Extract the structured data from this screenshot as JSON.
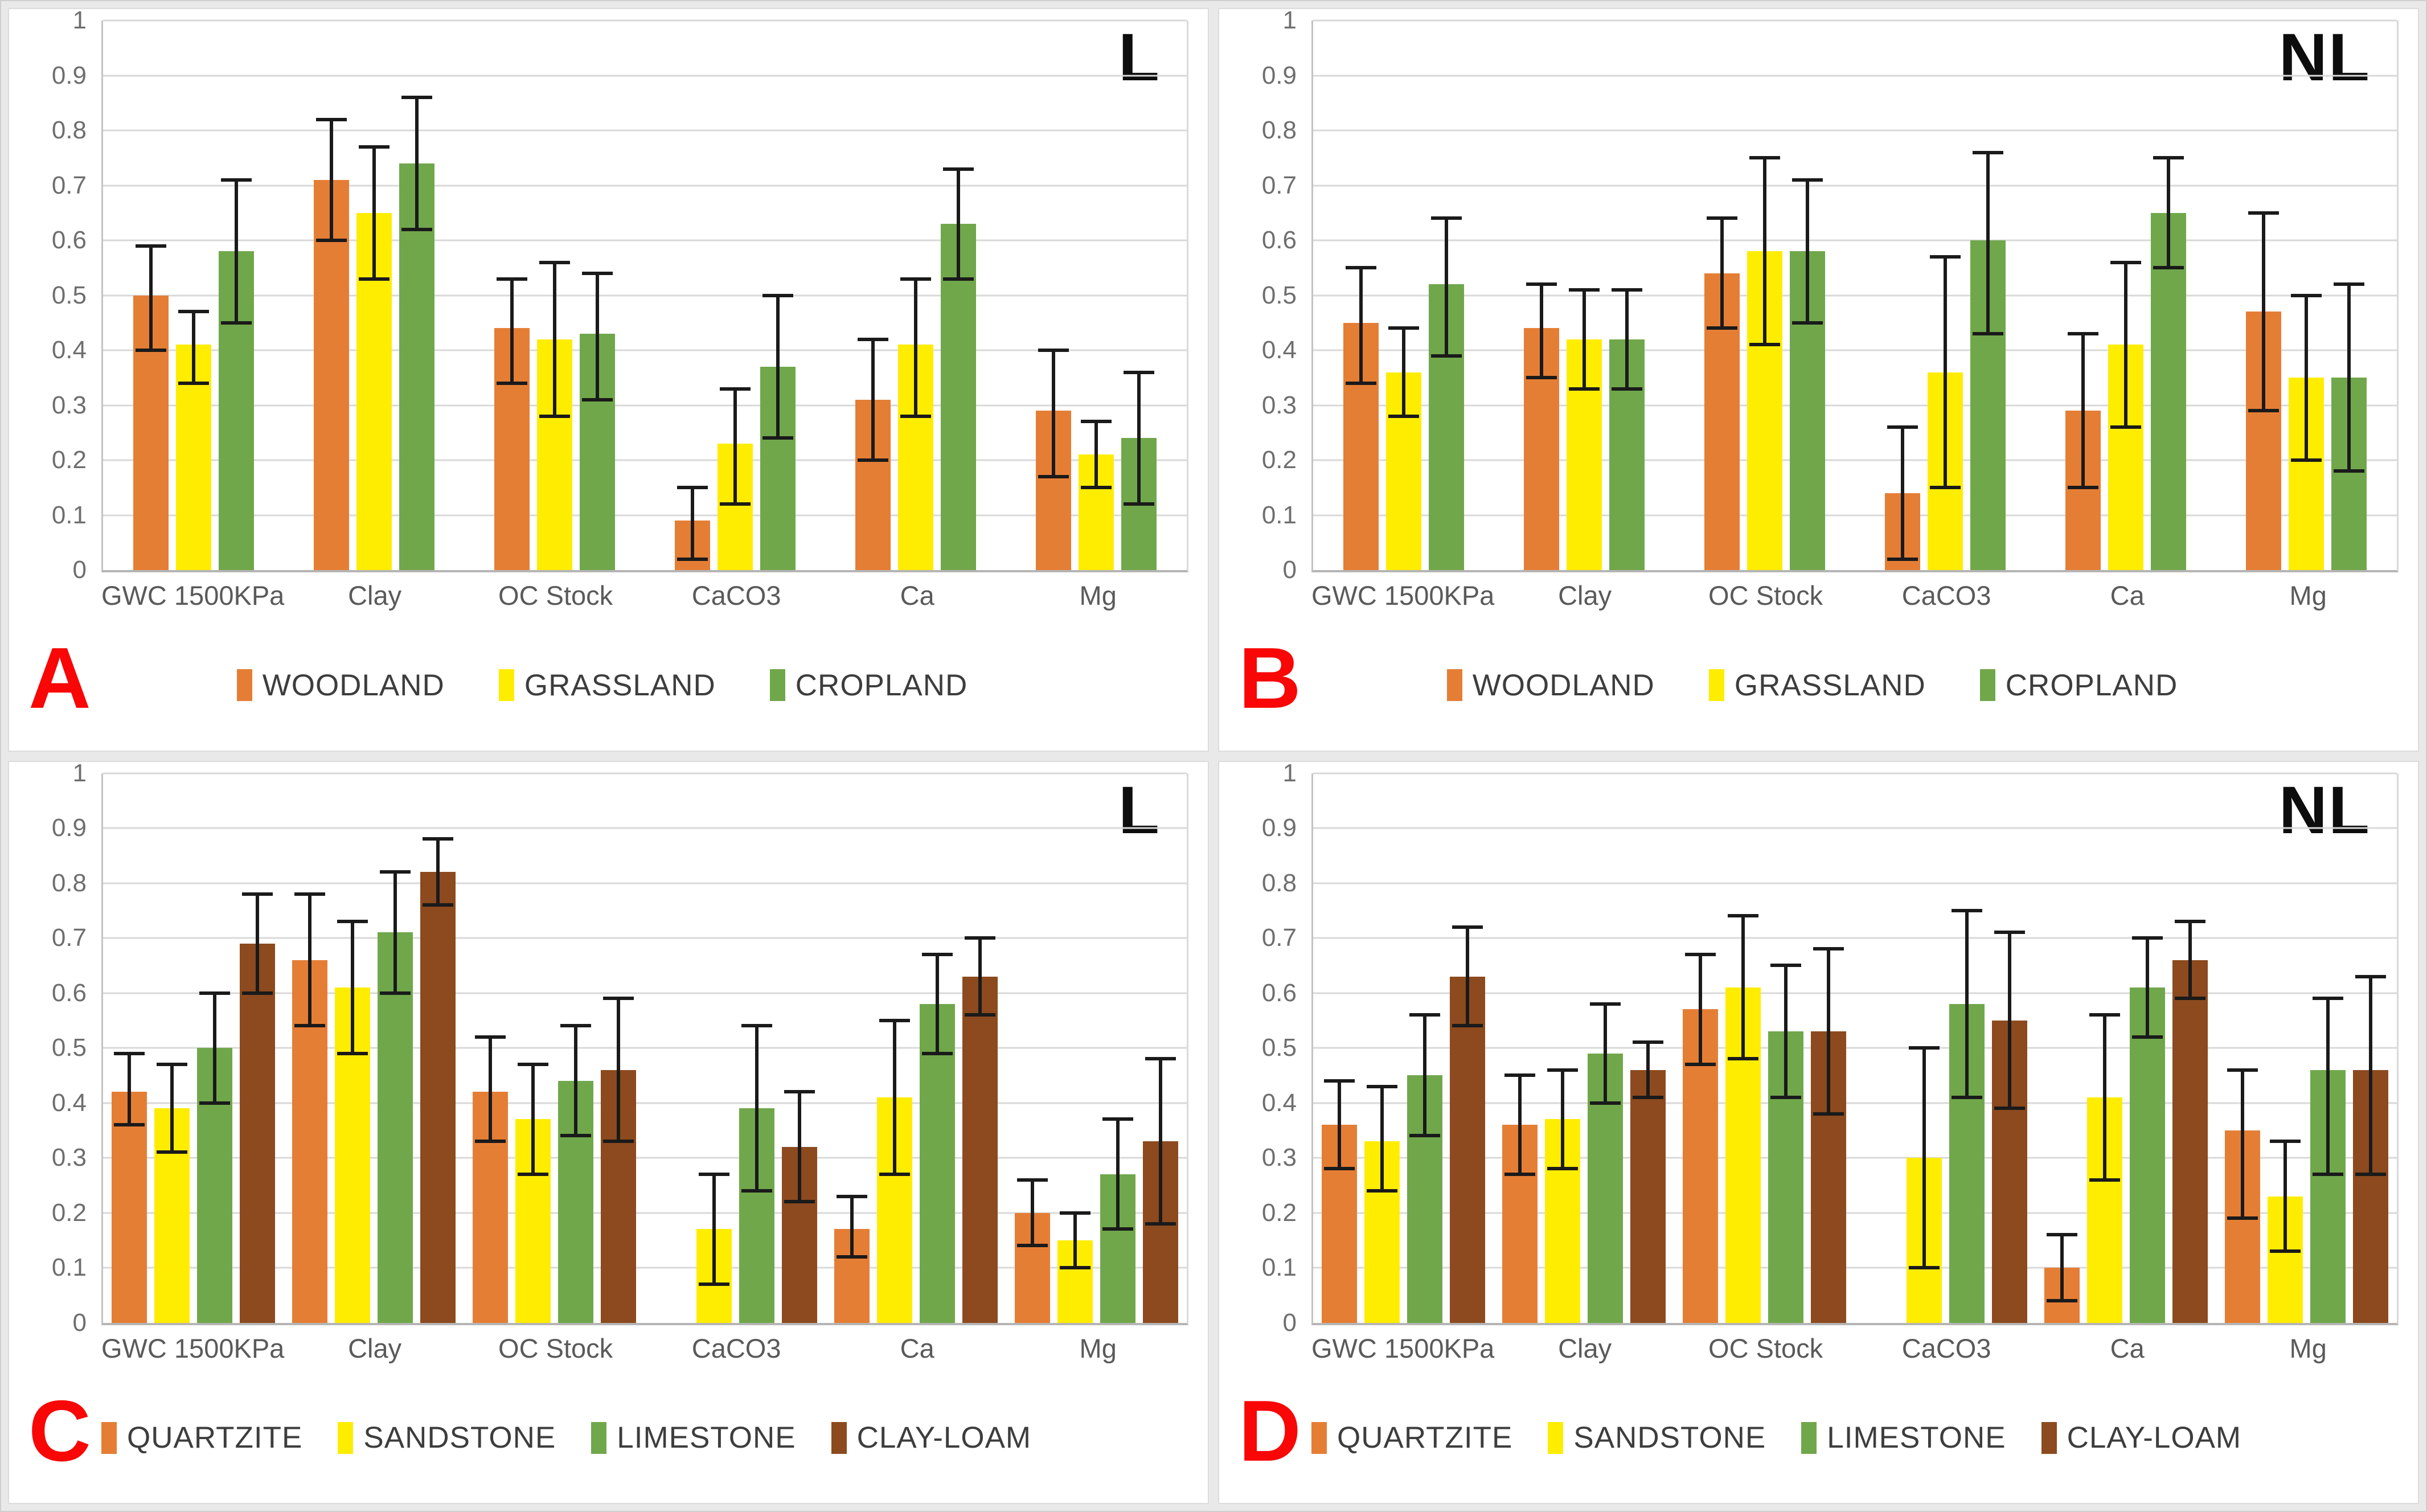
{
  "figure_label": "Four-panel grouped bar charts with error bars",
  "colors": {
    "woodland_quartzite_orange": "#E57E35",
    "grassland_sandstone_yellow": "#FFED00",
    "cropland_limestone_green": "#70A74B",
    "clay_loam_brown": "#8C4A1E",
    "panel_letter_red": "#F90606",
    "corner_label_black": "#0D0D0D",
    "gridline_gray": "#D9D9D9",
    "error_bar_black": "#1A1A1A"
  },
  "chart_data": [
    {
      "type": "bar",
      "panel_label": "A",
      "corner_label": "L",
      "title": "",
      "xlabel": "",
      "ylabel": "",
      "categories": [
        "GWC 1500KPa",
        "Clay",
        "OC Stock",
        "CaCO3",
        "Ca",
        "Mg"
      ],
      "ylim": [
        0,
        1
      ],
      "ytick_step": 0.1,
      "grid": true,
      "error_bars": true,
      "legend_position": "bottom",
      "series": [
        {
          "name": "WOODLAND",
          "color": "#E57E35",
          "values": [
            0.5,
            0.71,
            0.44,
            0.09,
            0.31,
            0.29
          ],
          "errors": [
            [
              0.4,
              0.59
            ],
            [
              0.6,
              0.82
            ],
            [
              0.34,
              0.53
            ],
            [
              0.02,
              0.15
            ],
            [
              0.2,
              0.42
            ],
            [
              0.17,
              0.4
            ]
          ]
        },
        {
          "name": "GRASSLAND",
          "color": "#FFED00",
          "values": [
            0.41,
            0.65,
            0.42,
            0.23,
            0.41,
            0.21
          ],
          "errors": [
            [
              0.34,
              0.47
            ],
            [
              0.53,
              0.77
            ],
            [
              0.28,
              0.56
            ],
            [
              0.12,
              0.33
            ],
            [
              0.28,
              0.53
            ],
            [
              0.15,
              0.27
            ]
          ]
        },
        {
          "name": "CROPLAND",
          "color": "#70A74B",
          "values": [
            0.58,
            0.74,
            0.43,
            0.37,
            0.63,
            0.24
          ],
          "errors": [
            [
              0.45,
              0.71
            ],
            [
              0.62,
              0.86
            ],
            [
              0.31,
              0.54
            ],
            [
              0.24,
              0.5
            ],
            [
              0.53,
              0.73
            ],
            [
              0.12,
              0.36
            ]
          ]
        }
      ]
    },
    {
      "type": "bar",
      "panel_label": "B",
      "corner_label": "NL",
      "title": "",
      "xlabel": "",
      "ylabel": "",
      "categories": [
        "GWC 1500KPa",
        "Clay",
        "OC Stock",
        "CaCO3",
        "Ca",
        "Mg"
      ],
      "ylim": [
        0,
        1
      ],
      "ytick_step": 0.1,
      "grid": true,
      "error_bars": true,
      "legend_position": "bottom",
      "series": [
        {
          "name": "WOODLAND",
          "color": "#E57E35",
          "values": [
            0.45,
            0.44,
            0.54,
            0.14,
            0.29,
            0.47
          ],
          "errors": [
            [
              0.34,
              0.55
            ],
            [
              0.35,
              0.52
            ],
            [
              0.44,
              0.64
            ],
            [
              0.02,
              0.26
            ],
            [
              0.15,
              0.43
            ],
            [
              0.29,
              0.65
            ]
          ]
        },
        {
          "name": "GRASSLAND",
          "color": "#FFED00",
          "values": [
            0.36,
            0.42,
            0.58,
            0.36,
            0.41,
            0.35
          ],
          "errors": [
            [
              0.28,
              0.44
            ],
            [
              0.33,
              0.51
            ],
            [
              0.41,
              0.75
            ],
            [
              0.15,
              0.57
            ],
            [
              0.26,
              0.56
            ],
            [
              0.2,
              0.5
            ]
          ]
        },
        {
          "name": "CROPLAND",
          "color": "#70A74B",
          "values": [
            0.52,
            0.42,
            0.58,
            0.6,
            0.65,
            0.35
          ],
          "errors": [
            [
              0.39,
              0.64
            ],
            [
              0.33,
              0.51
            ],
            [
              0.45,
              0.71
            ],
            [
              0.43,
              0.76
            ],
            [
              0.55,
              0.75
            ],
            [
              0.18,
              0.52
            ]
          ]
        }
      ]
    },
    {
      "type": "bar",
      "panel_label": "C",
      "corner_label": "L",
      "title": "",
      "xlabel": "",
      "ylabel": "",
      "categories": [
        "GWC 1500KPa",
        "Clay",
        "OC Stock",
        "CaCO3",
        "Ca",
        "Mg"
      ],
      "ylim": [
        0,
        1
      ],
      "ytick_step": 0.1,
      "grid": true,
      "error_bars": true,
      "legend_position": "bottom",
      "series": [
        {
          "name": "QUARTZITE",
          "color": "#E57E35",
          "values": [
            0.42,
            0.66,
            0.42,
            0,
            0.17,
            0.2
          ],
          "errors": [
            [
              0.36,
              0.49
            ],
            [
              0.54,
              0.78
            ],
            [
              0.33,
              0.52
            ],
            null,
            [
              0.12,
              0.23
            ],
            [
              0.14,
              0.26
            ]
          ]
        },
        {
          "name": "SANDSTONE",
          "color": "#FFED00",
          "values": [
            0.39,
            0.61,
            0.37,
            0.17,
            0.41,
            0.15
          ],
          "errors": [
            [
              0.31,
              0.47
            ],
            [
              0.49,
              0.73
            ],
            [
              0.27,
              0.47
            ],
            [
              0.07,
              0.27
            ],
            [
              0.27,
              0.55
            ],
            [
              0.1,
              0.2
            ]
          ]
        },
        {
          "name": "LIMESTONE",
          "color": "#70A74B",
          "values": [
            0.5,
            0.71,
            0.44,
            0.39,
            0.58,
            0.27
          ],
          "errors": [
            [
              0.4,
              0.6
            ],
            [
              0.6,
              0.82
            ],
            [
              0.34,
              0.54
            ],
            [
              0.24,
              0.54
            ],
            [
              0.49,
              0.67
            ],
            [
              0.17,
              0.37
            ]
          ]
        },
        {
          "name": "CLAY-LOAM",
          "color": "#8C4A1E",
          "values": [
            0.69,
            0.82,
            0.46,
            0.32,
            0.63,
            0.33
          ],
          "errors": [
            [
              0.6,
              0.78
            ],
            [
              0.76,
              0.88
            ],
            [
              0.33,
              0.59
            ],
            [
              0.22,
              0.42
            ],
            [
              0.56,
              0.7
            ],
            [
              0.18,
              0.48
            ]
          ]
        }
      ]
    },
    {
      "type": "bar",
      "panel_label": "D",
      "corner_label": "NL",
      "title": "",
      "xlabel": "",
      "ylabel": "",
      "categories": [
        "GWC 1500KPa",
        "Clay",
        "OC Stock",
        "CaCO3",
        "Ca",
        "Mg"
      ],
      "ylim": [
        0,
        1
      ],
      "ytick_step": 0.1,
      "grid": true,
      "error_bars": true,
      "legend_position": "bottom",
      "series": [
        {
          "name": "QUARTZITE",
          "color": "#E57E35",
          "values": [
            0.36,
            0.36,
            0.57,
            0,
            0.1,
            0.35
          ],
          "errors": [
            [
              0.28,
              0.44
            ],
            [
              0.27,
              0.45
            ],
            [
              0.47,
              0.67
            ],
            null,
            [
              0.04,
              0.16
            ],
            [
              0.19,
              0.46
            ]
          ]
        },
        {
          "name": "SANDSTONE",
          "color": "#FFED00",
          "values": [
            0.33,
            0.37,
            0.61,
            0.3,
            0.41,
            0.23
          ],
          "errors": [
            [
              0.24,
              0.43
            ],
            [
              0.28,
              0.46
            ],
            [
              0.48,
              0.74
            ],
            [
              0.1,
              0.5
            ],
            [
              0.26,
              0.56
            ],
            [
              0.13,
              0.33
            ]
          ]
        },
        {
          "name": "LIMESTONE",
          "color": "#70A74B",
          "values": [
            0.45,
            0.49,
            0.53,
            0.58,
            0.61,
            0.46
          ],
          "errors": [
            [
              0.34,
              0.56
            ],
            [
              0.4,
              0.58
            ],
            [
              0.41,
              0.65
            ],
            [
              0.41,
              0.75
            ],
            [
              0.52,
              0.7
            ],
            [
              0.27,
              0.59
            ]
          ]
        },
        {
          "name": "CLAY-LOAM",
          "color": "#8C4A1E",
          "values": [
            0.63,
            0.46,
            0.53,
            0.55,
            0.66,
            0.46
          ],
          "errors": [
            [
              0.54,
              0.72
            ],
            [
              0.41,
              0.51
            ],
            [
              0.38,
              0.68
            ],
            [
              0.39,
              0.71
            ],
            [
              0.59,
              0.73
            ],
            [
              0.27,
              0.63
            ]
          ]
        }
      ]
    }
  ]
}
